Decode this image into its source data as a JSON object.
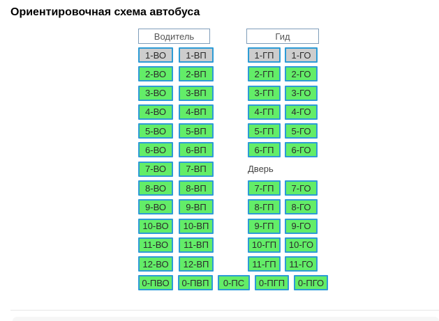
{
  "title": "Ориентировочная схема автобуса",
  "seat_map": {
    "driver_header": "Водитель",
    "guide_header": "Гид",
    "door_label": "Дверь",
    "left_rows": [
      [
        "1-ВО",
        "1-ВП"
      ],
      [
        "2-ВО",
        "2-ВП"
      ],
      [
        "3-ВО",
        "3-ВП"
      ],
      [
        "4-ВО",
        "4-ВП"
      ],
      [
        "5-ВО",
        "5-ВП"
      ],
      [
        "6-ВО",
        "6-ВП"
      ],
      [
        "7-ВО",
        "7-ВП"
      ],
      [
        "8-ВО",
        "8-ВП"
      ],
      [
        "9-ВО",
        "9-ВП"
      ],
      [
        "10-ВО",
        "10-ВП"
      ],
      [
        "11-ВО",
        "11-ВП"
      ],
      [
        "12-ВО",
        "12-ВП"
      ]
    ],
    "right_rows_before_door": [
      [
        "1-ГП",
        "1-ГО"
      ],
      [
        "2-ГП",
        "2-ГО"
      ],
      [
        "3-ГП",
        "3-ГО"
      ],
      [
        "4-ГП",
        "4-ГО"
      ],
      [
        "5-ГП",
        "5-ГО"
      ],
      [
        "6-ГП",
        "6-ГО"
      ]
    ],
    "right_rows_after_door": [
      [
        "7-ГП",
        "7-ГО"
      ],
      [
        "8-ГП",
        "8-ГО"
      ],
      [
        "9-ГП",
        "9-ГО"
      ],
      [
        "10-ГП",
        "10-ГО"
      ],
      [
        "11-ГП",
        "11-ГО"
      ]
    ],
    "bottom_row": [
      "0-ПВО",
      "0-ПВП",
      "0-ПС",
      "0-ПГП",
      "0-ПГО"
    ],
    "occupied_seats": [
      "1-ВО",
      "1-ВП",
      "1-ГП",
      "1-ГО"
    ]
  },
  "colors": {
    "seat_free": "#63ed68",
    "seat_occupied": "#cdcdcd",
    "seat_border": "#2d9bd6",
    "header_border": "#7f9db9"
  }
}
